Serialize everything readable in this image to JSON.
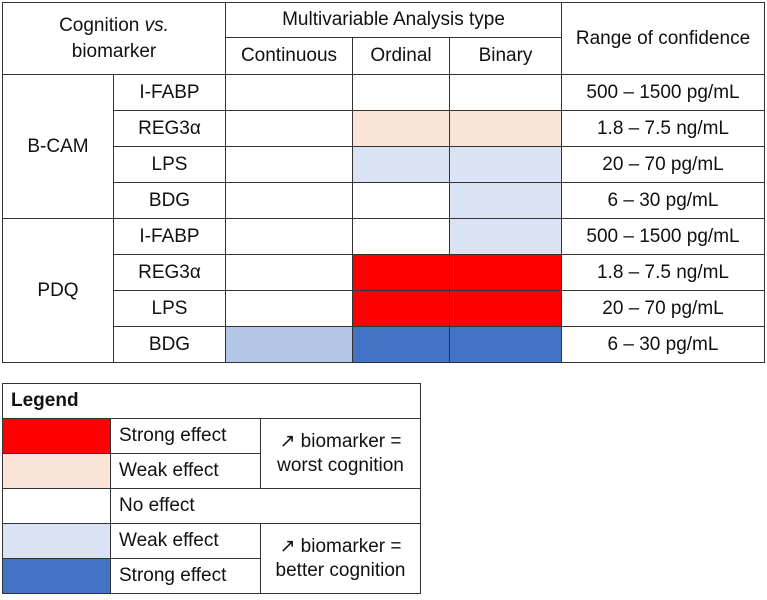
{
  "colors": {
    "strong_worse": "#fe0000",
    "weak_worse": "#fae3d7",
    "none": "#ffffff",
    "weak_better": "#dae3f3",
    "strong_better": "#4472c4",
    "mild_better": "#b4c7e7"
  },
  "header": {
    "cognition_line1": "Cognition ",
    "cognition_vs": "vs.",
    "cognition_line2": "biomarker",
    "analysis_type": "Multivariable Analysis type",
    "continuous": "Continuous",
    "ordinal": "Ordinal",
    "binary": "Binary",
    "range": "Range of confidence"
  },
  "groups": [
    {
      "name": "B-CAM",
      "rows": [
        {
          "biomarker": "I-FABP",
          "continuous": "none",
          "ordinal": "none",
          "binary": "none",
          "range": "500 – 1500 pg/mL"
        },
        {
          "biomarker": "REG3α",
          "continuous": "none",
          "ordinal": "weak_worse",
          "binary": "weak_worse",
          "range": "1.8 – 7.5 ng/mL"
        },
        {
          "biomarker": "LPS",
          "continuous": "none",
          "ordinal": "weak_better",
          "binary": "weak_better",
          "range": "20 – 70 pg/mL"
        },
        {
          "biomarker": "BDG",
          "continuous": "none",
          "ordinal": "none",
          "binary": "weak_better",
          "range": "6 – 30 pg/mL"
        }
      ]
    },
    {
      "name": "PDQ",
      "rows": [
        {
          "biomarker": "I-FABP",
          "continuous": "none",
          "ordinal": "none",
          "binary": "weak_better",
          "range": "500 – 1500 pg/mL"
        },
        {
          "biomarker": "REG3α",
          "continuous": "none",
          "ordinal": "strong_worse",
          "binary": "strong_worse",
          "range": "1.8 – 7.5 ng/mL"
        },
        {
          "biomarker": "LPS",
          "continuous": "none",
          "ordinal": "strong_worse",
          "binary": "strong_worse",
          "range": "20 – 70 pg/mL"
        },
        {
          "biomarker": "BDG",
          "continuous": "mild_better",
          "ordinal": "strong_better",
          "binary": "strong_better",
          "range": "6 – 30 pg/mL"
        }
      ]
    }
  ],
  "legend": {
    "title": "Legend",
    "strong_worse": "Strong effect",
    "weak_worse": "Weak effect",
    "none": "No effect",
    "weak_better": "Weak effect",
    "strong_better": "Strong effect",
    "worse_group_line1": "↗ biomarker =",
    "worse_group_line2": "worst cognition",
    "better_group_line1": "↗ biomarker =",
    "better_group_line2": "better cognition"
  }
}
